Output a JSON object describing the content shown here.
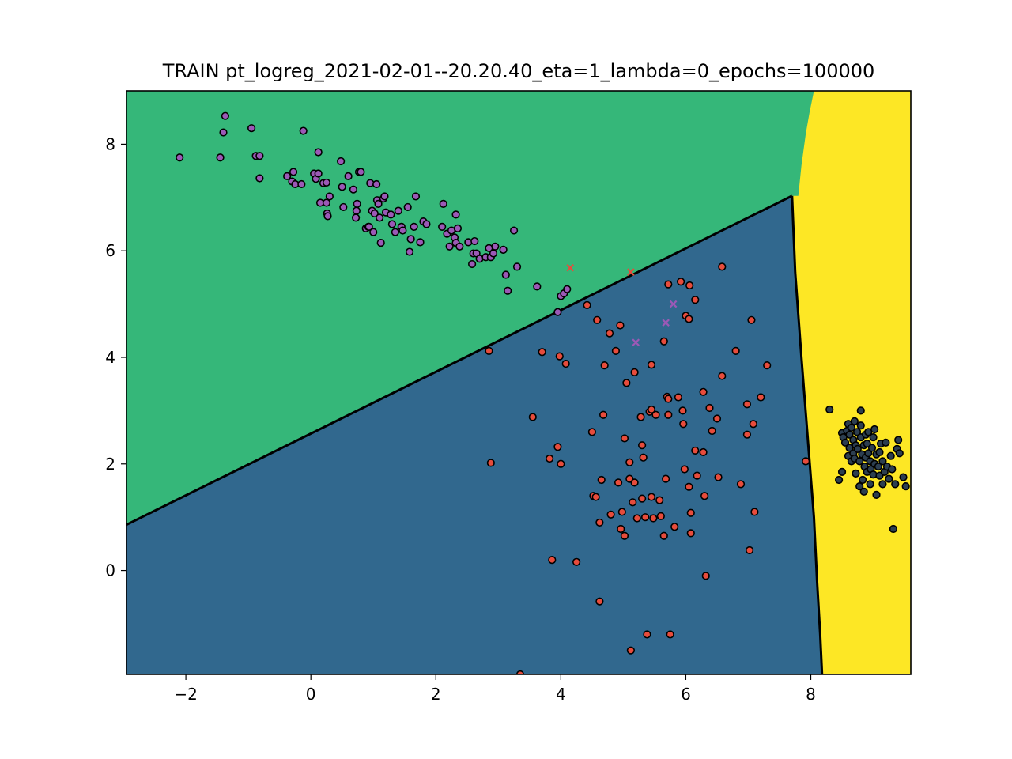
{
  "chart_data": {
    "type": "scatter",
    "title": "TRAIN pt_logreg_2021-02-01--20.20.40_eta=1_lambda=0_epochs=100000",
    "xlabel": "",
    "ylabel": "",
    "xlim": [
      -2.95,
      9.6
    ],
    "ylim": [
      -1.95,
      9.0
    ],
    "x_ticks": [
      -2,
      0,
      2,
      4,
      6,
      8
    ],
    "y_ticks": [
      0,
      2,
      4,
      6,
      8
    ],
    "x_tick_labels": [
      "−2",
      "0",
      "2",
      "4",
      "6",
      "8"
    ],
    "y_tick_labels": [
      "0",
      "2",
      "4",
      "6",
      "8"
    ],
    "grid": false,
    "legend": "none",
    "colors": {
      "region_top": "#35b779",
      "region_left": "#31688e",
      "region_right": "#fde725",
      "boundary": "#000000",
      "class_purple": "#9b59b6",
      "class_red": "#e74c3c",
      "class_dark": "#2c3e50",
      "marker_edge": "#000000"
    },
    "decision_regions": {
      "top_left_boundary_line": [
        [
          -2.95,
          0.86
        ],
        [
          7.7,
          7.03
        ]
      ],
      "vertical_boundary": [
        [
          7.7,
          7.03
        ],
        [
          7.75,
          5.6
        ],
        [
          7.85,
          4.0
        ],
        [
          7.95,
          2.5
        ],
        [
          8.05,
          1.0
        ],
        [
          8.1,
          -0.2
        ],
        [
          8.15,
          -1.2
        ],
        [
          8.18,
          -1.95
        ]
      ],
      "top_region_right_edge": [
        [
          7.8,
          7.03
        ],
        [
          7.85,
          7.6
        ],
        [
          7.92,
          8.2
        ],
        [
          7.98,
          8.6
        ],
        [
          8.05,
          9.0
        ]
      ]
    },
    "series": [
      {
        "marker": "circle",
        "color": "#9b59b6",
        "points": [
          [
            -2.1,
            7.75
          ],
          [
            -1.45,
            7.75
          ],
          [
            -1.4,
            8.22
          ],
          [
            -1.37,
            8.53
          ],
          [
            -0.95,
            8.3
          ],
          [
            -0.88,
            7.78
          ],
          [
            -0.82,
            7.78
          ],
          [
            -0.82,
            7.36
          ],
          [
            -0.38,
            7.4
          ],
          [
            -0.3,
            7.3
          ],
          [
            -0.28,
            7.48
          ],
          [
            -0.25,
            7.25
          ],
          [
            -0.15,
            7.25
          ],
          [
            -0.12,
            8.25
          ],
          [
            0.05,
            7.45
          ],
          [
            0.08,
            7.35
          ],
          [
            0.12,
            7.45
          ],
          [
            0.12,
            7.85
          ],
          [
            0.15,
            6.9
          ],
          [
            0.2,
            7.27
          ],
          [
            0.25,
            6.9
          ],
          [
            0.25,
            7.28
          ],
          [
            0.26,
            6.7
          ],
          [
            0.27,
            6.65
          ],
          [
            0.3,
            7.02
          ],
          [
            0.48,
            7.68
          ],
          [
            0.5,
            7.2
          ],
          [
            0.52,
            6.82
          ],
          [
            0.6,
            7.4
          ],
          [
            0.68,
            7.15
          ],
          [
            0.72,
            6.62
          ],
          [
            0.73,
            6.75
          ],
          [
            0.74,
            6.88
          ],
          [
            0.77,
            7.48
          ],
          [
            0.8,
            7.48
          ],
          [
            0.88,
            6.42
          ],
          [
            0.92,
            6.45
          ],
          [
            0.93,
            6.45
          ],
          [
            0.95,
            7.27
          ],
          [
            0.98,
            6.75
          ],
          [
            1.0,
            6.35
          ],
          [
            1.02,
            6.7
          ],
          [
            1.05,
            7.25
          ],
          [
            1.06,
            6.95
          ],
          [
            1.08,
            6.88
          ],
          [
            1.1,
            6.62
          ],
          [
            1.12,
            6.15
          ],
          [
            1.16,
            6.98
          ],
          [
            1.18,
            7.02
          ],
          [
            1.2,
            6.72
          ],
          [
            1.28,
            6.68
          ],
          [
            1.3,
            6.5
          ],
          [
            1.35,
            6.35
          ],
          [
            1.4,
            6.75
          ],
          [
            1.45,
            6.45
          ],
          [
            1.47,
            6.38
          ],
          [
            1.55,
            6.82
          ],
          [
            1.58,
            5.98
          ],
          [
            1.6,
            6.22
          ],
          [
            1.65,
            6.45
          ],
          [
            1.68,
            7.02
          ],
          [
            1.75,
            6.16
          ],
          [
            1.8,
            6.55
          ],
          [
            1.85,
            6.5
          ],
          [
            2.1,
            6.45
          ],
          [
            2.12,
            6.88
          ],
          [
            2.18,
            6.32
          ],
          [
            2.22,
            6.08
          ],
          [
            2.25,
            6.38
          ],
          [
            2.3,
            6.25
          ],
          [
            2.32,
            6.15
          ],
          [
            2.32,
            6.68
          ],
          [
            2.35,
            6.42
          ],
          [
            2.38,
            6.08
          ],
          [
            2.52,
            6.16
          ],
          [
            2.58,
            5.75
          ],
          [
            2.6,
            5.95
          ],
          [
            2.62,
            6.18
          ],
          [
            2.65,
            5.95
          ],
          [
            2.7,
            5.85
          ],
          [
            2.8,
            5.88
          ],
          [
            2.85,
            6.05
          ],
          [
            2.88,
            5.88
          ],
          [
            2.92,
            5.95
          ],
          [
            2.95,
            6.08
          ],
          [
            3.08,
            6.02
          ],
          [
            3.12,
            5.55
          ],
          [
            3.15,
            5.25
          ],
          [
            3.25,
            6.38
          ],
          [
            3.3,
            5.7
          ],
          [
            3.62,
            5.33
          ],
          [
            4.0,
            5.15
          ],
          [
            4.05,
            5.2
          ],
          [
            4.1,
            5.28
          ],
          [
            3.95,
            4.85
          ]
        ]
      },
      {
        "marker": "circle",
        "color": "#e74c3c",
        "points": [
          [
            2.85,
            4.12
          ],
          [
            2.88,
            2.02
          ],
          [
            3.35,
            -1.95
          ],
          [
            3.55,
            2.88
          ],
          [
            3.7,
            4.1
          ],
          [
            3.82,
            2.1
          ],
          [
            3.86,
            0.2
          ],
          [
            3.95,
            2.32
          ],
          [
            3.98,
            4.02
          ],
          [
            4.0,
            2.0
          ],
          [
            4.08,
            3.88
          ],
          [
            4.25,
            0.16
          ],
          [
            4.42,
            4.98
          ],
          [
            4.5,
            2.6
          ],
          [
            4.52,
            1.4
          ],
          [
            4.56,
            1.38
          ],
          [
            4.58,
            4.7
          ],
          [
            4.62,
            -0.58
          ],
          [
            4.62,
            0.9
          ],
          [
            4.65,
            1.7
          ],
          [
            4.68,
            2.92
          ],
          [
            4.7,
            3.85
          ],
          [
            4.78,
            4.45
          ],
          [
            4.8,
            1.05
          ],
          [
            4.88,
            4.12
          ],
          [
            4.92,
            1.65
          ],
          [
            4.95,
            4.6
          ],
          [
            4.96,
            0.78
          ],
          [
            4.98,
            1.1
          ],
          [
            5.02,
            2.48
          ],
          [
            5.02,
            0.65
          ],
          [
            5.05,
            3.52
          ],
          [
            5.1,
            1.72
          ],
          [
            5.1,
            2.03
          ],
          [
            5.12,
            -1.5
          ],
          [
            5.15,
            1.28
          ],
          [
            5.18,
            3.72
          ],
          [
            5.18,
            1.65
          ],
          [
            5.22,
            0.98
          ],
          [
            5.28,
            2.88
          ],
          [
            5.3,
            2.35
          ],
          [
            5.3,
            1.35
          ],
          [
            5.32,
            2.12
          ],
          [
            5.35,
            1.0
          ],
          [
            5.38,
            -1.2
          ],
          [
            5.42,
            2.98
          ],
          [
            5.45,
            3.02
          ],
          [
            5.45,
            3.86
          ],
          [
            5.45,
            1.38
          ],
          [
            5.48,
            0.98
          ],
          [
            5.52,
            2.92
          ],
          [
            5.58,
            1.32
          ],
          [
            5.6,
            1.02
          ],
          [
            5.65,
            0.65
          ],
          [
            5.65,
            4.3
          ],
          [
            5.68,
            1.72
          ],
          [
            5.7,
            3.26
          ],
          [
            5.72,
            3.22
          ],
          [
            5.72,
            2.92
          ],
          [
            5.72,
            5.37
          ],
          [
            5.75,
            -1.2
          ],
          [
            5.82,
            0.82
          ],
          [
            5.88,
            3.25
          ],
          [
            5.92,
            5.42
          ],
          [
            5.95,
            3.0
          ],
          [
            5.96,
            2.75
          ],
          [
            5.98,
            1.9
          ],
          [
            6.0,
            4.78
          ],
          [
            6.05,
            4.72
          ],
          [
            6.05,
            1.57
          ],
          [
            6.06,
            5.35
          ],
          [
            6.08,
            0.7
          ],
          [
            6.08,
            1.08
          ],
          [
            6.15,
            2.25
          ],
          [
            6.15,
            5.08
          ],
          [
            6.18,
            1.78
          ],
          [
            6.28,
            2.22
          ],
          [
            6.28,
            3.35
          ],
          [
            6.3,
            1.4
          ],
          [
            6.32,
            -0.1
          ],
          [
            6.38,
            3.05
          ],
          [
            6.42,
            2.62
          ],
          [
            6.5,
            2.85
          ],
          [
            6.52,
            1.75
          ],
          [
            6.58,
            3.65
          ],
          [
            6.58,
            5.7
          ],
          [
            6.8,
            4.12
          ],
          [
            6.88,
            1.62
          ],
          [
            6.98,
            3.12
          ],
          [
            6.98,
            2.55
          ],
          [
            7.02,
            0.38
          ],
          [
            7.05,
            4.7
          ],
          [
            7.08,
            2.75
          ],
          [
            7.1,
            1.1
          ],
          [
            7.2,
            3.25
          ],
          [
            7.3,
            3.85
          ],
          [
            7.92,
            2.05
          ]
        ]
      },
      {
        "marker": "circle",
        "color": "#2c3e50",
        "points": [
          [
            8.3,
            3.02
          ],
          [
            8.45,
            1.7
          ],
          [
            8.5,
            2.58
          ],
          [
            8.5,
            1.85
          ],
          [
            8.52,
            2.5
          ],
          [
            8.55,
            2.4
          ],
          [
            8.58,
            2.62
          ],
          [
            8.6,
            2.75
          ],
          [
            8.6,
            2.15
          ],
          [
            8.62,
            2.55
          ],
          [
            8.62,
            2.3
          ],
          [
            8.65,
            2.05
          ],
          [
            8.65,
            2.68
          ],
          [
            8.68,
            2.45
          ],
          [
            8.68,
            2.2
          ],
          [
            8.7,
            2.8
          ],
          [
            8.7,
            2.1
          ],
          [
            8.72,
            1.82
          ],
          [
            8.72,
            2.35
          ],
          [
            8.74,
            2.6
          ],
          [
            8.75,
            2.28
          ],
          [
            8.78,
            1.58
          ],
          [
            8.78,
            2.05
          ],
          [
            8.8,
            2.5
          ],
          [
            8.8,
            2.72
          ],
          [
            8.8,
            3.0
          ],
          [
            8.82,
            2.18
          ],
          [
            8.83,
            1.7
          ],
          [
            8.85,
            1.48
          ],
          [
            8.85,
            2.35
          ],
          [
            8.86,
            1.95
          ],
          [
            8.88,
            2.55
          ],
          [
            8.88,
            2.12
          ],
          [
            8.9,
            1.85
          ],
          [
            8.9,
            2.38
          ],
          [
            8.92,
            2.2
          ],
          [
            8.92,
            2.6
          ],
          [
            8.95,
            1.62
          ],
          [
            8.95,
            2.05
          ],
          [
            8.96,
            1.9
          ],
          [
            8.98,
            2.3
          ],
          [
            9.0,
            1.8
          ],
          [
            9.0,
            2.5
          ],
          [
            9.02,
            2.65
          ],
          [
            9.02,
            2.0
          ],
          [
            9.05,
            2.18
          ],
          [
            9.05,
            1.42
          ],
          [
            9.08,
            1.95
          ],
          [
            9.1,
            2.22
          ],
          [
            9.1,
            1.78
          ],
          [
            9.12,
            2.38
          ],
          [
            9.15,
            2.05
          ],
          [
            9.15,
            1.62
          ],
          [
            9.18,
            1.85
          ],
          [
            9.2,
            2.4
          ],
          [
            9.22,
            1.95
          ],
          [
            9.25,
            1.72
          ],
          [
            9.28,
            2.15
          ],
          [
            9.3,
            1.9
          ],
          [
            9.32,
            0.78
          ],
          [
            9.35,
            1.62
          ],
          [
            9.38,
            2.28
          ],
          [
            9.4,
            2.45
          ],
          [
            9.42,
            2.2
          ],
          [
            9.48,
            1.75
          ],
          [
            9.52,
            1.58
          ]
        ]
      },
      {
        "marker": "x",
        "color": "#e74c3c",
        "points": [
          [
            4.15,
            5.68
          ],
          [
            5.12,
            5.6
          ]
        ]
      },
      {
        "marker": "x",
        "color": "#9b59b6",
        "points": [
          [
            5.2,
            4.28
          ],
          [
            5.68,
            4.65
          ],
          [
            5.8,
            5.0
          ]
        ]
      }
    ]
  }
}
